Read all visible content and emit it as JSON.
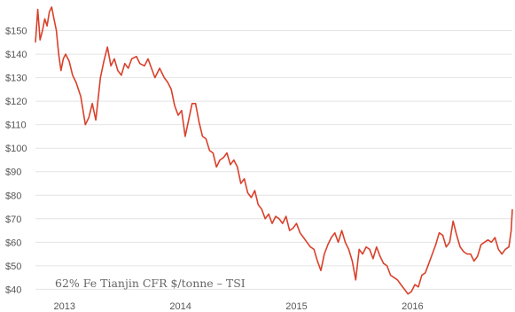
{
  "chart_data": {
    "type": "line",
    "title": "",
    "xlabel": "",
    "ylabel": "",
    "annotation": "62% Fe Tianjin CFR $/tonne – TSI",
    "y_tick_labels": [
      "$40",
      "$50",
      "$60",
      "$70",
      "$80",
      "$90",
      "$100",
      "$110",
      "$120",
      "$130",
      "$140",
      "$150"
    ],
    "y_ticks": [
      40,
      50,
      60,
      70,
      80,
      90,
      100,
      110,
      120,
      130,
      140,
      150
    ],
    "x_tick_labels": [
      "2013",
      "2014",
      "2015",
      "2016"
    ],
    "x_ticks": [
      2013.0,
      2014.0,
      2015.0,
      2016.0
    ],
    "xlim": [
      2012.75,
      2016.86
    ],
    "ylim": [
      36,
      160
    ],
    "grid": true,
    "line_color": "#d9412b",
    "series": [
      {
        "name": "",
        "x": [
          2012.75,
          2012.77,
          2012.79,
          2012.81,
          2012.83,
          2012.85,
          2012.87,
          2012.89,
          2012.91,
          2012.93,
          2012.95,
          2012.97,
          2012.99,
          2013.01,
          2013.04,
          2013.07,
          2013.1,
          2013.14,
          2013.18,
          2013.21,
          2013.24,
          2013.27,
          2013.31,
          2013.34,
          2013.37,
          2013.4,
          2013.43,
          2013.46,
          2013.49,
          2013.52,
          2013.55,
          2013.58,
          2013.62,
          2013.65,
          2013.69,
          2013.72,
          2013.75,
          2013.78,
          2013.82,
          2013.86,
          2013.89,
          2013.92,
          2013.95,
          2013.98,
          2014.01,
          2014.04,
          2014.07,
          2014.1,
          2014.13,
          2014.16,
          2014.19,
          2014.22,
          2014.25,
          2014.28,
          2014.31,
          2014.34,
          2014.37,
          2014.4,
          2014.43,
          2014.46,
          2014.49,
          2014.52,
          2014.55,
          2014.58,
          2014.61,
          2014.64,
          2014.67,
          2014.7,
          2014.73,
          2014.76,
          2014.79,
          2014.82,
          2014.85,
          2014.88,
          2014.91,
          2014.94,
          2014.97,
          2015.0,
          2015.03,
          2015.06,
          2015.09,
          2015.12,
          2015.15,
          2015.18,
          2015.21,
          2015.24,
          2015.27,
          2015.3,
          2015.33,
          2015.36,
          2015.39,
          2015.42,
          2015.45,
          2015.48,
          2015.51,
          2015.54,
          2015.57,
          2015.6,
          2015.63,
          2015.66,
          2015.69,
          2015.72,
          2015.75,
          2015.78,
          2015.81,
          2015.84,
          2015.87,
          2015.9,
          2015.93,
          2015.96,
          2015.99,
          2016.02,
          2016.05,
          2016.08,
          2016.11,
          2016.14,
          2016.17,
          2016.2,
          2016.23,
          2016.26,
          2016.29,
          2016.32,
          2016.35,
          2016.38,
          2016.41,
          2016.44,
          2016.47,
          2016.5,
          2016.53,
          2016.56,
          2016.59,
          2016.62,
          2016.65,
          2016.68,
          2016.71,
          2016.74,
          2016.77,
          2016.8,
          2016.83,
          2016.85,
          2016.86
        ],
        "y": [
          145,
          159,
          146,
          150,
          155,
          152,
          158,
          160,
          155,
          150,
          140,
          133,
          138,
          140,
          137,
          131,
          128,
          122,
          110,
          113,
          119,
          112,
          130,
          137,
          143,
          135,
          138,
          133,
          131,
          136,
          134,
          138,
          139,
          136,
          135,
          138,
          134,
          130,
          134,
          130,
          128,
          125,
          118,
          114,
          116,
          105,
          112,
          119,
          119,
          111,
          105,
          104,
          99,
          98,
          92,
          95,
          96,
          98,
          93,
          95,
          92,
          85,
          87,
          81,
          79,
          82,
          76,
          74,
          70,
          72,
          68,
          71,
          70,
          68,
          71,
          65,
          66,
          68,
          64,
          62,
          60,
          58,
          57,
          52,
          48,
          55,
          59,
          62,
          64,
          60,
          65,
          60,
          57,
          52,
          44,
          57,
          55,
          58,
          57,
          53,
          58,
          54,
          51,
          50,
          46,
          45,
          44,
          42,
          40,
          38,
          39,
          42,
          41,
          46,
          47,
          51,
          55,
          59,
          64,
          63,
          58,
          60,
          69,
          63,
          58,
          56,
          55,
          55,
          52,
          54,
          59,
          60,
          61,
          60,
          62,
          57,
          55,
          57,
          58,
          65,
          74
        ]
      }
    ]
  }
}
